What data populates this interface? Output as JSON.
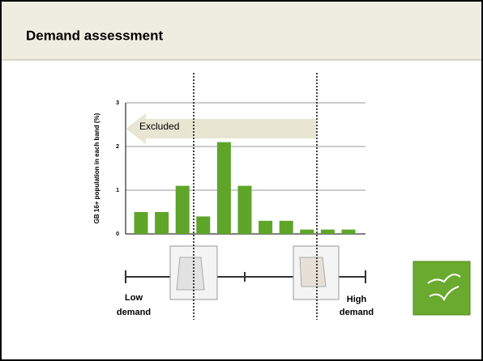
{
  "chart_data": {
    "type": "bar",
    "title": "Demand assessment",
    "y_label": "GB 16+ population in each band (%)",
    "values": [
      0.5,
      0.5,
      1.1,
      0.4,
      2.1,
      1.1,
      0.3,
      0.3,
      0.1,
      0.1,
      0.1
    ],
    "color": "#5ea52a",
    "ylim": [
      0,
      3
    ],
    "yticks": [
      0,
      1,
      2,
      3
    ],
    "grid": true,
    "annotations": {
      "excluded": "Excluded",
      "low": [
        "Low",
        "demand"
      ],
      "high": [
        "High",
        "demand"
      ]
    }
  }
}
